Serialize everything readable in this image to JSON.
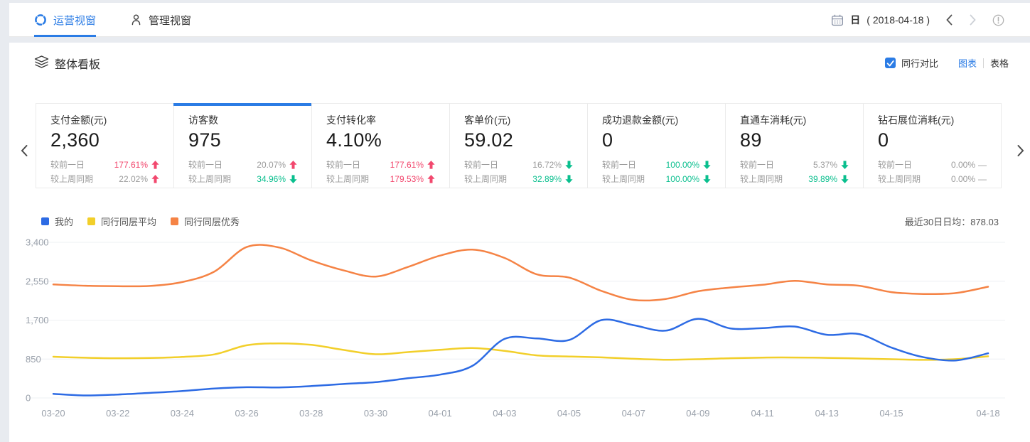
{
  "colors": {
    "accent": "#2b7ce5",
    "up_red": "#f2486e",
    "down_green": "#0abf8e",
    "muted": "#9b9b9b",
    "axis_text": "#9aa1ab",
    "grid_line": "#eef0f3"
  },
  "topbar": {
    "tabs": [
      {
        "label": "运营视窗",
        "icon": "sync-circle-icon",
        "active": true
      },
      {
        "label": "管理视窗",
        "icon": "user-icon",
        "active": false
      }
    ],
    "date_picker": {
      "icon": "calendar-icon",
      "mode_label": "日",
      "date_text": "( 2018-04-18 )"
    },
    "nav": {
      "prev_icon": "chevron-left-icon",
      "next_icon": "chevron-right-icon",
      "info_icon": "info-icon"
    }
  },
  "board": {
    "icon": "layers-icon",
    "title": "整体看板",
    "peer_compare": {
      "checked": true,
      "label": "同行对比"
    },
    "view_toggle": {
      "chart_label": "图表",
      "table_label": "表格",
      "active": "图表"
    }
  },
  "cards": [
    {
      "title": "支付金额(元)",
      "value": "2,360",
      "selected": false,
      "rows": [
        {
          "label": "较前一日",
          "value": "177.61%",
          "direction": "up",
          "value_color": "up_red"
        },
        {
          "label": "较上周同期",
          "value": "22.02%",
          "direction": "up",
          "value_color": "muted"
        }
      ]
    },
    {
      "title": "访客数",
      "value": "975",
      "selected": true,
      "rows": [
        {
          "label": "较前一日",
          "value": "20.07%",
          "direction": "up",
          "value_color": "muted"
        },
        {
          "label": "较上周同期",
          "value": "34.96%",
          "direction": "down",
          "value_color": "down_green"
        }
      ]
    },
    {
      "title": "支付转化率",
      "value": "4.10%",
      "selected": false,
      "rows": [
        {
          "label": "较前一日",
          "value": "177.61%",
          "direction": "up",
          "value_color": "up_red"
        },
        {
          "label": "较上周同期",
          "value": "179.53%",
          "direction": "up",
          "value_color": "up_red"
        }
      ]
    },
    {
      "title": "客单价(元)",
      "value": "59.02",
      "selected": false,
      "rows": [
        {
          "label": "较前一日",
          "value": "16.72%",
          "direction": "down",
          "value_color": "muted"
        },
        {
          "label": "较上周同期",
          "value": "32.89%",
          "direction": "down",
          "value_color": "down_green"
        }
      ]
    },
    {
      "title": "成功退款金额(元)",
      "value": "0",
      "selected": false,
      "rows": [
        {
          "label": "较前一日",
          "value": "100.00%",
          "direction": "down",
          "value_color": "down_green"
        },
        {
          "label": "较上周同期",
          "value": "100.00%",
          "direction": "down",
          "value_color": "down_green"
        }
      ]
    },
    {
      "title": "直通车消耗(元)",
      "value": "89",
      "selected": false,
      "rows": [
        {
          "label": "较前一日",
          "value": "5.37%",
          "direction": "down",
          "value_color": "muted"
        },
        {
          "label": "较上周同期",
          "value": "39.89%",
          "direction": "down",
          "value_color": "down_green"
        }
      ]
    },
    {
      "title": "钻石展位消耗(元)",
      "value": "0",
      "selected": false,
      "rows": [
        {
          "label": "较前一日",
          "value": "0.00%",
          "direction": "flat",
          "value_color": "muted"
        },
        {
          "label": "较上周同期",
          "value": "0.00%",
          "direction": "flat",
          "value_color": "muted"
        }
      ]
    }
  ],
  "chart_data": {
    "type": "line",
    "smooth": true,
    "grid": true,
    "legend_position": "top-left",
    "note": "最近30日日均：878.03",
    "ylim": [
      0,
      3400
    ],
    "yticks": [
      0,
      850,
      1700,
      2550,
      3400
    ],
    "ytick_labels": [
      "0",
      "850",
      "1,700",
      "2,550",
      "3,400"
    ],
    "x": [
      "03-20",
      "03-21",
      "03-22",
      "03-23",
      "03-24",
      "03-25",
      "03-26",
      "03-27",
      "03-28",
      "03-29",
      "03-30",
      "03-31",
      "04-01",
      "04-02",
      "04-03",
      "04-04",
      "04-05",
      "04-06",
      "04-07",
      "04-08",
      "04-09",
      "04-10",
      "04-11",
      "04-12",
      "04-13",
      "04-14",
      "04-15",
      "04-16",
      "04-17",
      "04-18"
    ],
    "x_tick_labels": [
      "03-20",
      "03-22",
      "03-24",
      "03-26",
      "03-28",
      "03-30",
      "04-01",
      "04-03",
      "04-05",
      "04-07",
      "04-09",
      "04-11",
      "04-13",
      "04-15",
      "04-18"
    ],
    "series": [
      {
        "name": "我的",
        "color": "#2d6be4",
        "values": [
          90,
          55,
          75,
          110,
          150,
          205,
          235,
          230,
          260,
          305,
          345,
          430,
          510,
          700,
          1290,
          1300,
          1265,
          1700,
          1590,
          1470,
          1730,
          1520,
          1525,
          1560,
          1380,
          1395,
          1100,
          890,
          820,
          975
        ]
      },
      {
        "name": "同行同层平均",
        "color": "#f2cf2a",
        "values": [
          900,
          878,
          868,
          872,
          896,
          952,
          1150,
          1192,
          1160,
          1050,
          955,
          1002,
          1052,
          1090,
          1028,
          930,
          905,
          886,
          856,
          836,
          846,
          868,
          882,
          884,
          876,
          862,
          846,
          832,
          848,
          910
        ]
      },
      {
        "name": "同行同层优秀",
        "color": "#f58345",
        "values": [
          2480,
          2452,
          2442,
          2446,
          2532,
          2762,
          3298,
          3288,
          3005,
          2788,
          2652,
          2862,
          3110,
          3240,
          3058,
          2700,
          2630,
          2340,
          2142,
          2162,
          2330,
          2412,
          2472,
          2558,
          2480,
          2452,
          2312,
          2272,
          2292,
          2430
        ]
      }
    ]
  }
}
